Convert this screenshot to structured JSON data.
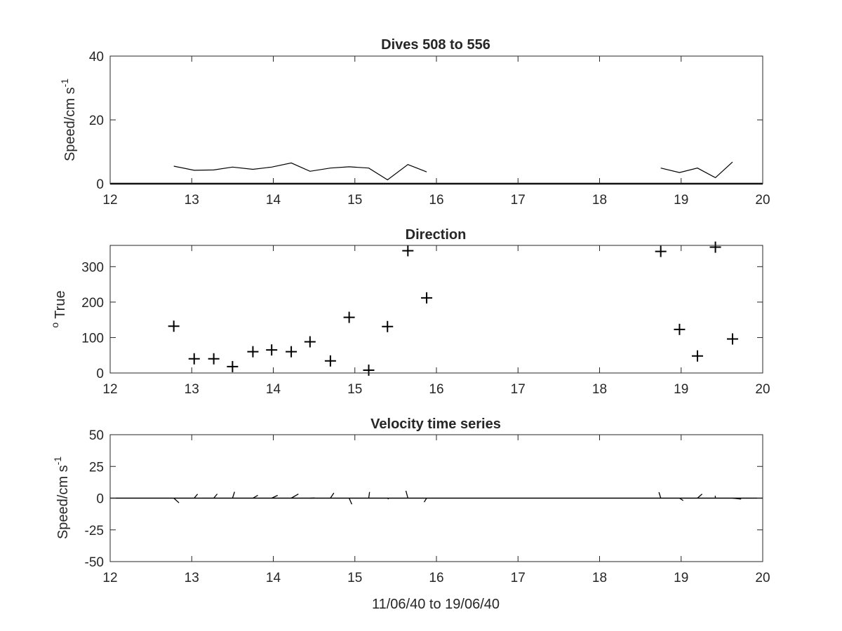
{
  "chart_data": [
    {
      "type": "line",
      "title": "Dives 508 to 556",
      "ylabel": "Speed/cm s",
      "ylabel_sup": "-1",
      "xlim": [
        12,
        20
      ],
      "ylim": [
        0,
        40
      ],
      "xticks": [
        "12",
        "13",
        "14",
        "15",
        "16",
        "17",
        "18",
        "19",
        "20"
      ],
      "yticks": [
        "0",
        "20",
        "40"
      ],
      "series": [
        {
          "x": [
            12.78,
            13.03,
            13.27,
            13.5,
            13.75,
            13.98,
            14.22,
            14.45,
            14.7,
            14.93,
            15.17,
            15.4,
            15.65,
            15.88
          ],
          "y": [
            5.5,
            4.2,
            4.3,
            5.2,
            4.5,
            5.2,
            6.5,
            3.9,
            4.9,
            5.3,
            4.9,
            1.2,
            6.0,
            3.7
          ]
        },
        {
          "x": [
            18.75,
            18.98,
            19.2,
            19.42,
            19.63
          ],
          "y": [
            4.9,
            3.5,
            4.9,
            1.9,
            6.8
          ]
        }
      ]
    },
    {
      "type": "scatter",
      "title": "Direction",
      "ylabel": "True",
      "ylabel_sup": "o",
      "xlim": [
        12,
        20
      ],
      "ylim": [
        0,
        360
      ],
      "xticks": [
        "12",
        "13",
        "14",
        "15",
        "16",
        "17",
        "18",
        "19",
        "20"
      ],
      "yticks": [
        "0",
        "100",
        "200",
        "300"
      ],
      "marker": "+",
      "series": [
        {
          "x": [
            12.78,
            13.03,
            13.27,
            13.5,
            13.75,
            13.98,
            14.22,
            14.45,
            14.7,
            14.93,
            15.17,
            15.4,
            15.65,
            15.88,
            18.75,
            18.98,
            19.2,
            19.42,
            19.63
          ],
          "y": [
            132,
            40,
            40,
            18,
            60,
            65,
            60,
            88,
            34,
            157,
            8,
            131,
            345,
            212,
            343,
            123,
            48,
            355,
            96
          ]
        }
      ]
    },
    {
      "type": "quiver",
      "title": "Velocity time series",
      "ylabel": "Speed/cm s",
      "ylabel_sup": "-1",
      "xlabel": "11/06/40 to 19/06/40",
      "xlim": [
        12,
        20
      ],
      "ylim": [
        -50,
        50
      ],
      "xticks": [
        "12",
        "13",
        "14",
        "15",
        "16",
        "17",
        "18",
        "19",
        "20"
      ],
      "yticks": [
        "-50",
        "-25",
        "0",
        "25",
        "50"
      ],
      "vectors": {
        "x": [
          12.78,
          13.03,
          13.27,
          13.5,
          13.75,
          13.98,
          14.22,
          14.45,
          14.7,
          14.93,
          15.17,
          15.4,
          15.65,
          15.88,
          18.75,
          18.98,
          19.2,
          19.42,
          19.63
        ],
        "speed": [
          5.5,
          4.2,
          4.3,
          5.2,
          4.5,
          5.2,
          6.5,
          3.9,
          4.9,
          5.3,
          4.9,
          1.2,
          6.0,
          3.7,
          4.9,
          3.5,
          4.9,
          1.9,
          6.8
        ],
        "direction": [
          132,
          40,
          40,
          18,
          60,
          65,
          60,
          88,
          34,
          157,
          8,
          131,
          345,
          212,
          343,
          123,
          48,
          355,
          96
        ]
      }
    }
  ]
}
